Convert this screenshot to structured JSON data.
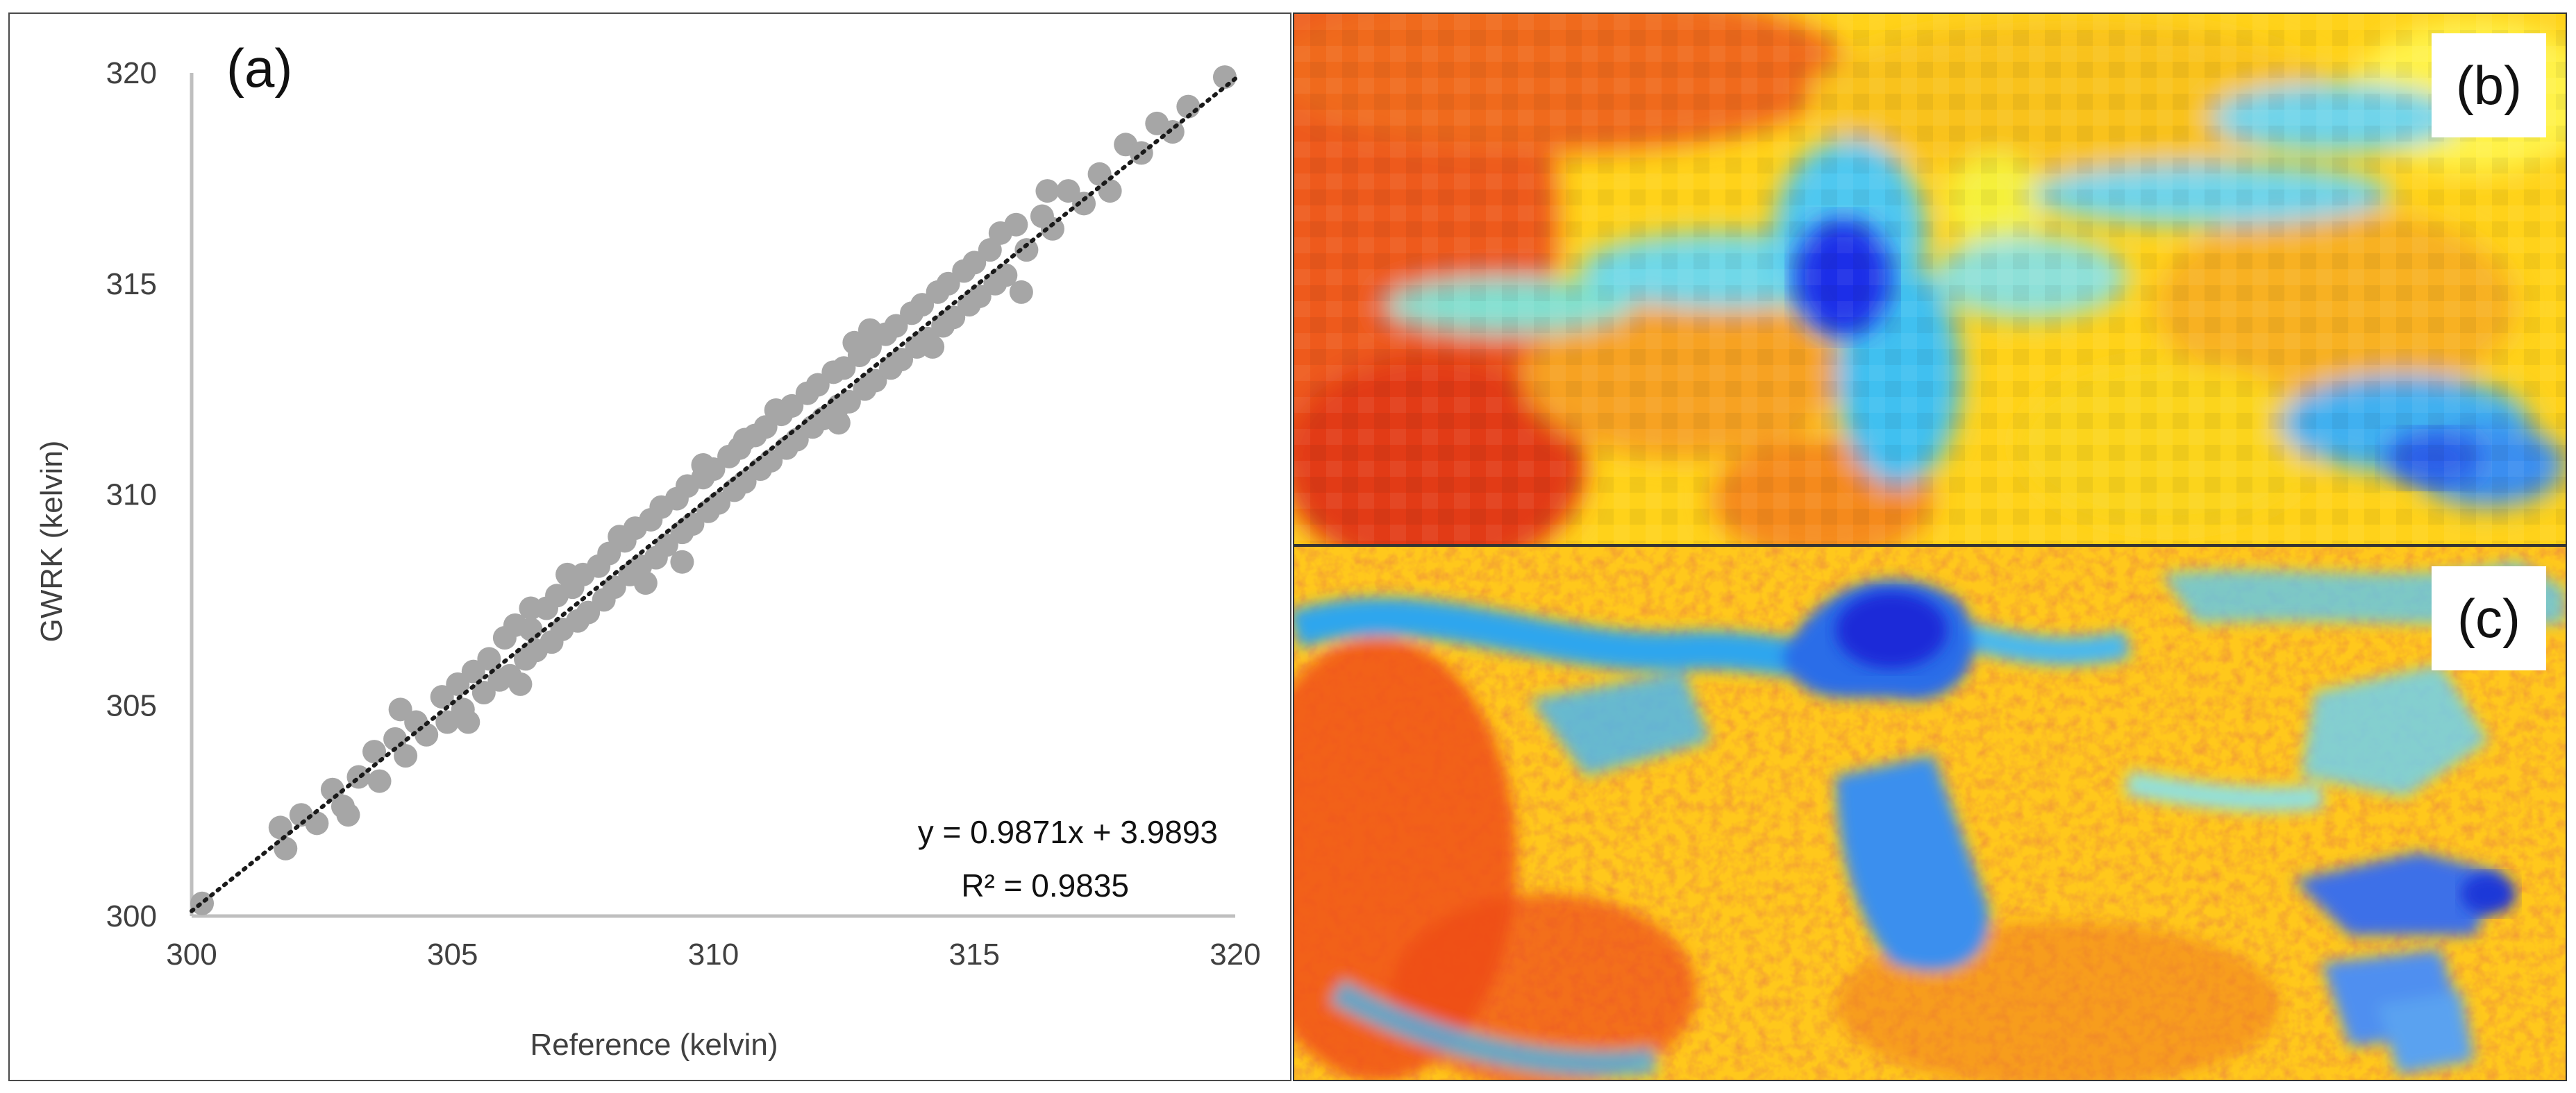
{
  "chart_data": {
    "type": "scatter",
    "panel_label": "(a)",
    "xlabel": "Reference (kelvin)",
    "ylabel": "GWRK (kelvin)",
    "xlim": [
      300,
      320
    ],
    "ylim": [
      300,
      320
    ],
    "xticks": [
      "300",
      "305",
      "310",
      "315",
      "320"
    ],
    "yticks": [
      "300",
      "305",
      "310",
      "315",
      "320"
    ],
    "grid": false,
    "marker_color": "#a6a6a6",
    "trendline_color": "#1a1a1a",
    "trendline": {
      "slope": 0.9871,
      "intercept": 3.9893
    },
    "equation_text": "y = 0.9871x + 3.9893",
    "r2_text": "R² = 0.9835",
    "points": [
      [
        300.2,
        300.3
      ],
      [
        301.7,
        302.1
      ],
      [
        301.8,
        301.6
      ],
      [
        302.1,
        302.4
      ],
      [
        302.4,
        302.2
      ],
      [
        302.7,
        303.0
      ],
      [
        302.9,
        302.6
      ],
      [
        303.2,
        303.3
      ],
      [
        303.5,
        303.9
      ],
      [
        303.6,
        303.2
      ],
      [
        303.9,
        304.2
      ],
      [
        304.1,
        303.8
      ],
      [
        304.3,
        304.6
      ],
      [
        304.5,
        304.3
      ],
      [
        304.8,
        305.2
      ],
      [
        304.9,
        304.6
      ],
      [
        305.1,
        305.5
      ],
      [
        305.2,
        304.9
      ],
      [
        305.4,
        305.8
      ],
      [
        305.6,
        305.3
      ],
      [
        305.7,
        306.1
      ],
      [
        305.9,
        305.6
      ],
      [
        306.0,
        306.6
      ],
      [
        306.1,
        305.7
      ],
      [
        306.2,
        306.9
      ],
      [
        306.4,
        306.1
      ],
      [
        306.5,
        306.8
      ],
      [
        306.6,
        306.3
      ],
      [
        306.8,
        307.3
      ],
      [
        306.9,
        306.5
      ],
      [
        307.0,
        307.6
      ],
      [
        307.1,
        306.8
      ],
      [
        307.3,
        307.8
      ],
      [
        307.4,
        307.0
      ],
      [
        307.5,
        308.1
      ],
      [
        307.6,
        307.2
      ],
      [
        307.8,
        308.3
      ],
      [
        307.9,
        307.5
      ],
      [
        308.0,
        308.6
      ],
      [
        308.1,
        307.8
      ],
      [
        308.3,
        308.9
      ],
      [
        308.4,
        308.1
      ],
      [
        308.5,
        309.2
      ],
      [
        308.6,
        308.3
      ],
      [
        308.8,
        309.4
      ],
      [
        308.9,
        308.5
      ],
      [
        309.0,
        309.7
      ],
      [
        309.1,
        308.8
      ],
      [
        309.3,
        309.9
      ],
      [
        309.4,
        309.1
      ],
      [
        309.5,
        310.2
      ],
      [
        309.6,
        309.3
      ],
      [
        309.8,
        310.4
      ],
      [
        309.9,
        309.6
      ],
      [
        310.0,
        310.6
      ],
      [
        310.1,
        309.8
      ],
      [
        310.3,
        310.9
      ],
      [
        310.4,
        310.1
      ],
      [
        310.5,
        311.1
      ],
      [
        310.6,
        310.3
      ],
      [
        310.8,
        311.4
      ],
      [
        310.9,
        310.6
      ],
      [
        311.0,
        311.6
      ],
      [
        311.1,
        310.8
      ],
      [
        311.3,
        311.9
      ],
      [
        311.4,
        311.1
      ],
      [
        311.5,
        312.1
      ],
      [
        311.6,
        311.3
      ],
      [
        311.8,
        312.4
      ],
      [
        311.9,
        311.6
      ],
      [
        312.0,
        312.6
      ],
      [
        312.1,
        311.8
      ],
      [
        312.3,
        312.9
      ],
      [
        312.4,
        312.1
      ],
      [
        312.5,
        313.0
      ],
      [
        312.6,
        312.2
      ],
      [
        312.8,
        313.3
      ],
      [
        312.9,
        312.5
      ],
      [
        313.0,
        313.5
      ],
      [
        313.1,
        312.7
      ],
      [
        313.3,
        313.8
      ],
      [
        313.4,
        313.0
      ],
      [
        313.5,
        314.0
      ],
      [
        313.6,
        313.2
      ],
      [
        313.8,
        314.3
      ],
      [
        313.9,
        313.5
      ],
      [
        314.0,
        314.5
      ],
      [
        314.1,
        313.7
      ],
      [
        314.3,
        314.8
      ],
      [
        314.4,
        314.0
      ],
      [
        314.5,
        315.0
      ],
      [
        314.6,
        314.2
      ],
      [
        314.8,
        315.3
      ],
      [
        314.9,
        314.5
      ],
      [
        315.0,
        315.5
      ],
      [
        315.1,
        314.7
      ],
      [
        315.3,
        315.8
      ],
      [
        315.4,
        315.0
      ],
      [
        315.5,
        316.2
      ],
      [
        315.6,
        315.2
      ],
      [
        315.8,
        316.4
      ],
      [
        316.0,
        315.8
      ],
      [
        316.3,
        316.6
      ],
      [
        316.5,
        316.3
      ],
      [
        316.8,
        317.2
      ],
      [
        317.1,
        316.9
      ],
      [
        317.4,
        317.6
      ],
      [
        317.6,
        317.2
      ],
      [
        317.9,
        318.3
      ],
      [
        318.2,
        318.1
      ],
      [
        318.5,
        318.8
      ],
      [
        318.8,
        318.6
      ],
      [
        319.1,
        319.2
      ],
      [
        319.8,
        319.9
      ],
      [
        306.5,
        307.3
      ],
      [
        309.8,
        310.7
      ],
      [
        311.2,
        312.0
      ],
      [
        304.0,
        304.9
      ],
      [
        307.2,
        308.1
      ],
      [
        313.0,
        313.9
      ],
      [
        305.3,
        304.6
      ],
      [
        308.7,
        307.9
      ],
      [
        312.4,
        311.7
      ],
      [
        309.4,
        308.4
      ],
      [
        306.3,
        305.5
      ],
      [
        315.9,
        314.8
      ],
      [
        303.0,
        302.4
      ],
      [
        310.6,
        311.3
      ],
      [
        314.2,
        313.5
      ],
      [
        308.2,
        309.0
      ],
      [
        312.7,
        313.6
      ],
      [
        316.4,
        317.2
      ]
    ]
  },
  "panels": {
    "b": {
      "label": "(b)"
    },
    "c": {
      "label": "(c)"
    }
  }
}
